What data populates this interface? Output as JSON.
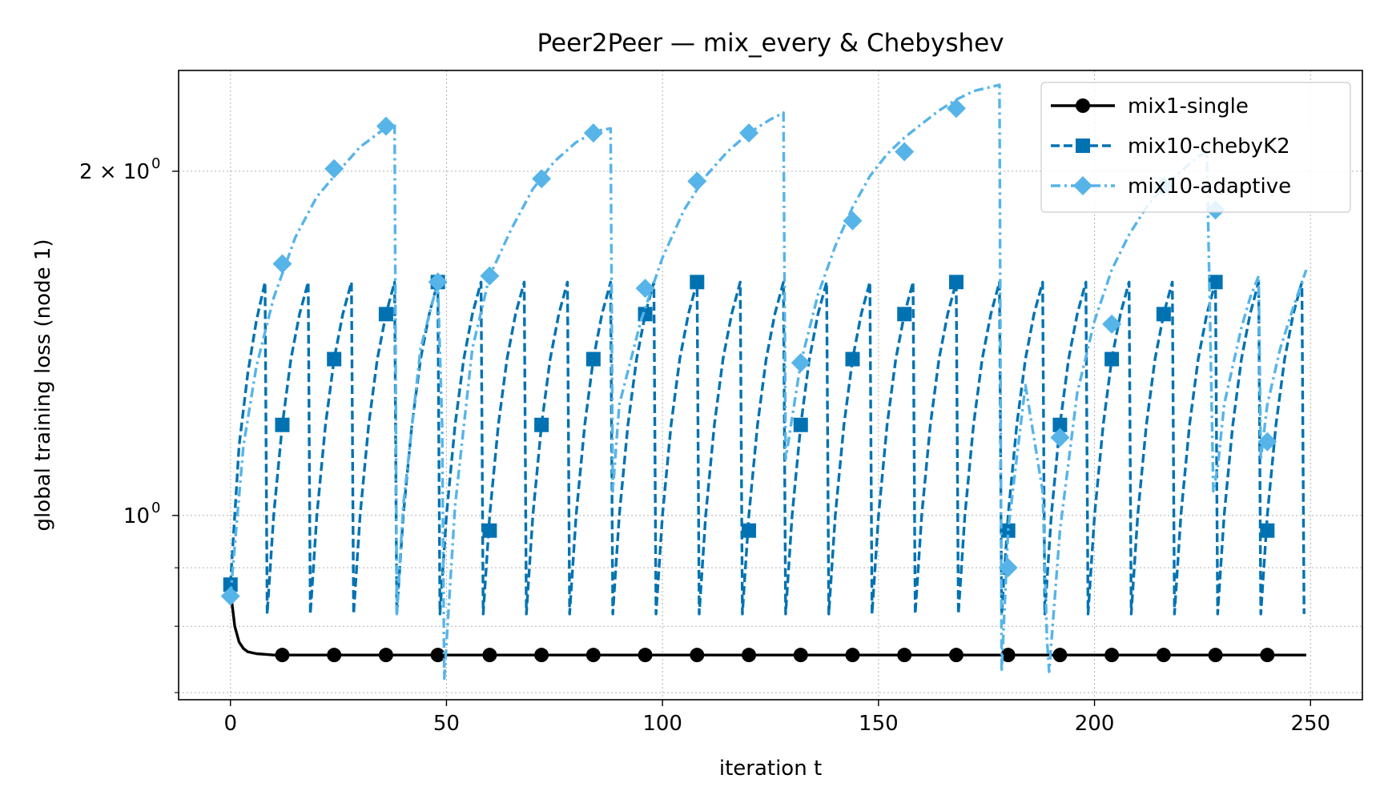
{
  "chart_data": {
    "type": "line",
    "title": "Peer2Peer — mix_every & Chebyshev",
    "xlabel": "iteration t",
    "ylabel": "global training loss (node 1)",
    "xlim": [
      -12,
      262
    ],
    "ylim": [
      0.69,
      2.45
    ],
    "yscale": "log",
    "grid": true,
    "legend_position": "top-right",
    "x_ticks": [
      0,
      50,
      100,
      150,
      200,
      250
    ],
    "x_tick_labels": [
      "0",
      "50",
      "100",
      "150",
      "200",
      "250"
    ],
    "y_major_ticks": [
      1.0,
      2.0
    ],
    "y_tick_labels": [
      "10",
      "2 × 10"
    ],
    "y_tick_exponents": [
      "0",
      "0"
    ],
    "y_minor_ticks": [
      0.7,
      0.8,
      0.9
    ],
    "series": [
      {
        "name": "mix1-single",
        "color": "#000000",
        "marker": "circle",
        "linestyle": "solid",
        "x": [
          0,
          1,
          2,
          3,
          4,
          6,
          8,
          10,
          12,
          20,
          30,
          50,
          80,
          120,
          160,
          200,
          249
        ],
        "y": [
          0.86,
          0.8,
          0.775,
          0.765,
          0.76,
          0.757,
          0.756,
          0.755,
          0.755,
          0.755,
          0.755,
          0.755,
          0.755,
          0.755,
          0.755,
          0.755,
          0.755
        ],
        "marker_x": [
          12,
          24,
          36,
          48,
          60,
          72,
          84,
          96,
          108,
          120,
          132,
          144,
          156,
          168,
          180,
          192,
          204,
          216,
          228,
          240
        ],
        "marker_y": [
          0.755,
          0.755,
          0.755,
          0.755,
          0.755,
          0.755,
          0.755,
          0.755,
          0.755,
          0.755,
          0.755,
          0.755,
          0.755,
          0.755,
          0.755,
          0.755,
          0.755,
          0.755,
          0.755,
          0.755
        ]
      },
      {
        "name": "mix10-chebyK2",
        "color": "#0072b2",
        "marker": "square",
        "linestyle": "dashed",
        "x": [
          0,
          2,
          4,
          6,
          8,
          8.5,
          10,
          12,
          14,
          16,
          18,
          18.5,
          20,
          22,
          24,
          26,
          28,
          28.5,
          30,
          32,
          34,
          36,
          38,
          38.5,
          40,
          42,
          44,
          46,
          48,
          48.5,
          50,
          52,
          54,
          56,
          58,
          58.5,
          60,
          62,
          64,
          66,
          68,
          68.5,
          70,
          72,
          74,
          76,
          78,
          78.5,
          80,
          82,
          84,
          86,
          88,
          88.5,
          90,
          92,
          94,
          96,
          98,
          98.5,
          100,
          102,
          104,
          106,
          108,
          108.5,
          110,
          112,
          114,
          116,
          118,
          118.5,
          120,
          122,
          124,
          126,
          128,
          128.5,
          130,
          132,
          134,
          136,
          138,
          138.5,
          140,
          142,
          144,
          146,
          148,
          148.5,
          150,
          152,
          154,
          156,
          158,
          158.5,
          160,
          162,
          164,
          166,
          168,
          168.5,
          170,
          172,
          174,
          176,
          178,
          178.5,
          180,
          182,
          184,
          186,
          188,
          188.5,
          190,
          192,
          194,
          196,
          198,
          198.5,
          200,
          202,
          204,
          206,
          208,
          208.5,
          210,
          212,
          214,
          216,
          218,
          218.5,
          220,
          222,
          224,
          226,
          228,
          228.5,
          230,
          232,
          234,
          236,
          238,
          238.5,
          240,
          242,
          244,
          246,
          248,
          248.5
        ],
        "y": [
          0.87,
          1.15,
          1.33,
          1.48,
          1.6,
          0.82,
          1.0,
          1.2,
          1.37,
          1.5,
          1.6,
          0.82,
          1.0,
          1.2,
          1.37,
          1.5,
          1.6,
          0.82,
          1.0,
          1.2,
          1.37,
          1.5,
          1.6,
          0.82,
          1.0,
          1.2,
          1.37,
          1.5,
          1.6,
          0.82,
          1.0,
          1.2,
          1.37,
          1.5,
          1.6,
          0.82,
          1.0,
          1.2,
          1.37,
          1.5,
          1.6,
          0.82,
          1.0,
          1.2,
          1.37,
          1.5,
          1.6,
          0.82,
          1.0,
          1.2,
          1.37,
          1.5,
          1.6,
          0.82,
          1.0,
          1.2,
          1.37,
          1.5,
          1.6,
          0.82,
          1.0,
          1.2,
          1.37,
          1.5,
          1.6,
          0.82,
          1.0,
          1.2,
          1.37,
          1.5,
          1.6,
          0.82,
          1.0,
          1.2,
          1.37,
          1.5,
          1.6,
          0.82,
          1.0,
          1.2,
          1.37,
          1.5,
          1.6,
          0.82,
          1.0,
          1.2,
          1.37,
          1.5,
          1.6,
          0.82,
          1.0,
          1.2,
          1.37,
          1.5,
          1.6,
          0.82,
          1.0,
          1.2,
          1.37,
          1.5,
          1.6,
          0.82,
          1.0,
          1.2,
          1.37,
          1.5,
          1.6,
          0.82,
          1.0,
          1.2,
          1.37,
          1.5,
          1.6,
          0.82,
          1.0,
          1.2,
          1.37,
          1.5,
          1.6,
          0.82,
          1.0,
          1.2,
          1.37,
          1.5,
          1.6,
          0.82,
          1.0,
          1.2,
          1.37,
          1.5,
          1.6,
          0.82,
          1.0,
          1.2,
          1.37,
          1.5,
          1.6,
          0.82,
          1.0,
          1.2,
          1.37,
          1.5,
          1.6,
          0.82,
          1.0,
          1.2,
          1.37,
          1.5,
          1.6,
          0.82
        ],
        "marker_x": [
          0,
          12,
          24,
          36,
          48,
          60,
          72,
          84,
          96,
          108,
          120,
          132,
          144,
          156,
          168,
          180,
          192,
          204,
          216,
          228,
          240
        ],
        "marker_y": [
          0.87,
          1.2,
          1.37,
          1.5,
          1.6,
          0.97,
          1.2,
          1.37,
          1.5,
          1.6,
          0.97,
          1.2,
          1.37,
          1.5,
          1.6,
          0.97,
          1.2,
          1.37,
          1.5,
          1.6,
          0.97
        ]
      },
      {
        "name": "mix10-adaptive",
        "color": "#56b4e9",
        "marker": "diamond",
        "linestyle": "dashdot",
        "x": [
          0,
          3,
          6,
          10,
          15,
          20,
          25,
          30,
          35,
          38,
          38.5,
          40,
          44,
          48,
          49,
          49.5,
          52,
          56,
          60,
          65,
          70,
          75,
          80,
          85,
          88,
          88.5,
          90,
          95,
          100,
          105,
          110,
          115,
          120,
          125,
          128,
          128.5,
          132,
          136,
          140,
          144,
          148,
          152,
          156,
          160,
          164,
          168,
          172,
          176,
          178,
          178.5,
          180,
          184,
          188,
          189,
          189.5,
          192,
          196,
          200,
          204,
          208,
          212,
          216,
          220,
          224,
          226,
          227.5,
          228.5,
          230,
          234,
          236,
          238,
          238.5,
          240,
          243,
          246,
          249
        ],
        "y": [
          0.85,
          1.15,
          1.35,
          1.55,
          1.75,
          1.9,
          2.0,
          2.1,
          2.17,
          2.2,
          0.82,
          1.02,
          1.4,
          1.6,
          1.2,
          0.72,
          1.02,
          1.4,
          1.62,
          1.78,
          1.93,
          2.04,
          2.12,
          2.17,
          2.18,
          1.05,
          1.25,
          1.48,
          1.68,
          1.85,
          1.98,
          2.08,
          2.16,
          2.22,
          2.25,
          1.12,
          1.36,
          1.56,
          1.72,
          1.86,
          1.98,
          2.07,
          2.14,
          2.2,
          2.26,
          2.31,
          2.35,
          2.37,
          2.38,
          0.73,
          0.97,
          1.3,
          1.05,
          0.78,
          0.73,
          0.97,
          1.28,
          1.48,
          1.64,
          1.76,
          1.86,
          1.94,
          2.0,
          2.06,
          2.08,
          1.05,
          1.1,
          1.25,
          1.46,
          1.55,
          1.62,
          1.12,
          1.25,
          1.4,
          1.52,
          1.64
        ],
        "marker_x": [
          0,
          12,
          24,
          36,
          48,
          60,
          72,
          84,
          96,
          108,
          120,
          132,
          144,
          156,
          168,
          180,
          192,
          204,
          216,
          228,
          240
        ],
        "marker_y": [
          0.85,
          1.66,
          2.01,
          2.19,
          1.6,
          1.62,
          1.97,
          2.16,
          1.58,
          1.96,
          2.16,
          1.36,
          1.81,
          2.08,
          2.27,
          0.9,
          1.17,
          1.47,
          1.94,
          1.85,
          1.16
        ]
      }
    ]
  }
}
